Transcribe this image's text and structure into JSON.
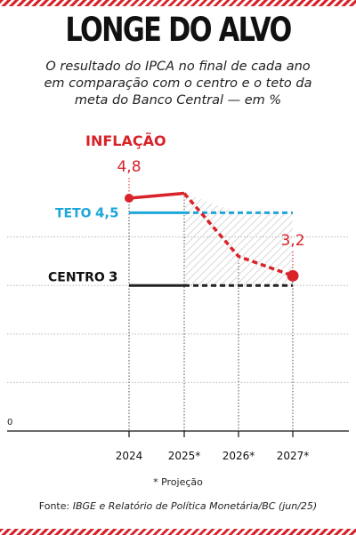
{
  "header": {
    "title": "LONGE DO ALVO",
    "subtitle_lines": [
      "O resultado do IPCA no final de cada ano",
      "em comparação com o centro e o teto da",
      "meta do Banco Central — em %"
    ]
  },
  "chart_data": {
    "type": "line",
    "x": [
      "2024",
      "2025*",
      "2026*",
      "2027*"
    ],
    "ylim": [
      0,
      4.8
    ],
    "y_tick_labels": [
      "0"
    ],
    "series": [
      {
        "name": "INFLAÇÃO",
        "values": [
          4.8,
          4.9,
          3.6,
          3.2
        ],
        "color": "#d8232a",
        "start_label": "4,8",
        "end_label": "3,2"
      },
      {
        "name": "TETO",
        "values": [
          4.5,
          4.5,
          4.5,
          4.5
        ],
        "color": "#1ea6d9",
        "value_label": "4,5"
      },
      {
        "name": "CENTRO",
        "values": [
          3,
          3,
          3,
          3
        ],
        "color": "#222222",
        "value_label": "3"
      }
    ],
    "projected_from": "2025*",
    "grid": true
  },
  "footer": {
    "note": "* Projeção",
    "source_prefix": "Fonte: ",
    "source_text": "IBGE e Relatório de Política Monetária/BC (jun/25)"
  }
}
